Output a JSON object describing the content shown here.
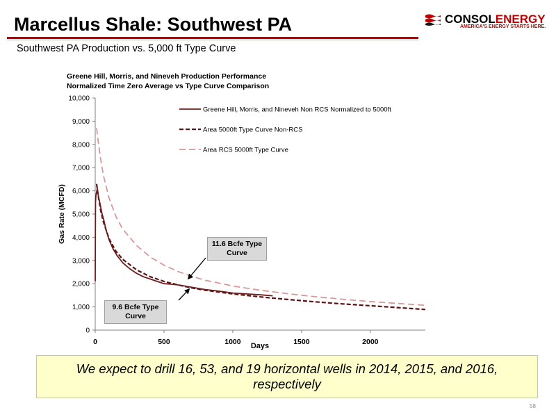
{
  "slide": {
    "title": "Marcellus Shale: Southwest PA",
    "subtitle": "Southwest PA Production vs. 5,000 ft Type Curve",
    "banner": "We expect to drill 16, 53, and 19 horizontal wells in 2014, 2015, and 2016, respectively",
    "page_number": "58"
  },
  "logo": {
    "name_part1": "CONSOL",
    "name_part2": "ENERGY",
    "tagline": "AMERICA'S ENERGY STARTS HERE.",
    "brand_color": "#c00000",
    "icon": "consol-flag-icon"
  },
  "chart_data": {
    "type": "line",
    "title": "Greene Hill,  Morris, and Nineveh Production Performance",
    "subtitle": "Normalized Time Zero Average vs Type Curve Comparison",
    "xlabel": "Days",
    "ylabel": "Gas Rate (MCFD)",
    "xlim": [
      0,
      2400
    ],
    "ylim": [
      0,
      10000
    ],
    "x_ticks": [
      0,
      500,
      1000,
      1500,
      2000
    ],
    "x_tick_labels": [
      "0",
      "500",
      "1000",
      "1500",
      "2000"
    ],
    "y_ticks": [
      0,
      1000,
      2000,
      3000,
      4000,
      5000,
      6000,
      7000,
      8000,
      9000,
      10000
    ],
    "y_tick_labels": [
      "0",
      "1,000",
      "2,000",
      "3,000",
      "4,000",
      "5,000",
      "6,000",
      "7,000",
      "8,000",
      "9,000",
      "10,000"
    ],
    "grid": false,
    "legend_position": "top-right",
    "series": [
      {
        "name": "Greene Hill, Morris, and Nineveh Non RCS Normalized to 5000ft",
        "style": "solid",
        "color": "#6b1d1d",
        "x": [
          0,
          2,
          5,
          10,
          15,
          20,
          25,
          30,
          40,
          50,
          60,
          80,
          100,
          130,
          160,
          200,
          250,
          300,
          350,
          400,
          450,
          500,
          550,
          600,
          650,
          700,
          800,
          900,
          1000,
          1100,
          1200,
          1290
        ],
        "y": [
          2100,
          5500,
          5800,
          5950,
          6100,
          5900,
          5700,
          5600,
          5300,
          5000,
          4800,
          4300,
          3900,
          3500,
          3200,
          2900,
          2650,
          2450,
          2300,
          2200,
          2100,
          2000,
          1980,
          1950,
          1900,
          1850,
          1750,
          1680,
          1600,
          1560,
          1520,
          1480
        ]
      },
      {
        "name": "Area 5000ft Type Curve Non-RCS",
        "style": "dashed",
        "color": "#5c1212",
        "x": [
          10,
          20,
          40,
          60,
          100,
          150,
          200,
          300,
          400,
          500,
          600,
          700,
          800,
          1000,
          1200,
          1400,
          1600,
          1800,
          2000,
          2200,
          2400
        ],
        "y": [
          6300,
          5850,
          5150,
          4650,
          3950,
          3400,
          3050,
          2600,
          2300,
          2100,
          1950,
          1820,
          1720,
          1560,
          1430,
          1320,
          1220,
          1130,
          1050,
          970,
          890
        ]
      },
      {
        "name": "Area RCS 5000ft Type Curve",
        "style": "dashed",
        "color": "#d99797",
        "x": [
          10,
          20,
          40,
          60,
          100,
          150,
          200,
          300,
          400,
          500,
          600,
          700,
          800,
          1000,
          1200,
          1400,
          1600,
          1800,
          2000,
          2200,
          2400
        ],
        "y": [
          8700,
          8200,
          7350,
          6650,
          5700,
          4900,
          4350,
          3650,
          3150,
          2800,
          2530,
          2320,
          2150,
          1900,
          1720,
          1570,
          1440,
          1330,
          1230,
          1150,
          1070
        ]
      }
    ],
    "annotations": [
      {
        "text": "11.6 Bcfe Type Curve",
        "points_to": "Area RCS 5000ft Type Curve",
        "x": 680,
        "y": 2200
      },
      {
        "text": "9.6 Bcfe Type Curve",
        "points_to": "Area 5000ft Type Curve Non-RCS",
        "x": 680,
        "y": 1900
      }
    ]
  }
}
